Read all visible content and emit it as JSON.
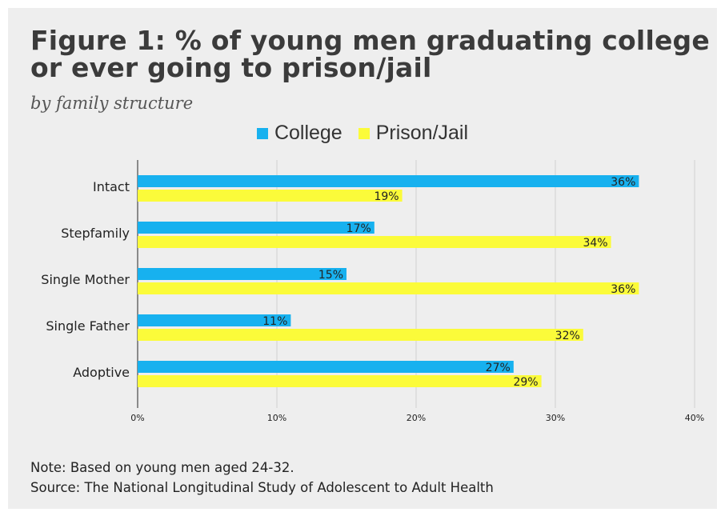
{
  "title_line1": "Figure 1: % of young men graduating college",
  "title_line2": "or ever going to prison/jail",
  "subtitle": "by family structure",
  "notes": {
    "note": "Note: Based on young men aged 24-32.",
    "source": "Source: The National Longitudinal Study of Adolescent to Adult Health"
  },
  "colors": {
    "college": "#17b1ef",
    "prison": "#fbfb3a",
    "background": "#eeeeee",
    "grid": "#d0d0d0"
  },
  "chart_data": {
    "type": "bar",
    "orientation": "horizontal",
    "title": "Figure 1: % of young men graduating college or ever going to prison/jail",
    "subtitle": "by family structure",
    "categories": [
      "Intact",
      "Stepfamily",
      "Single Mother",
      "Single Father",
      "Adoptive"
    ],
    "series": [
      {
        "name": "College",
        "values": [
          36,
          17,
          15,
          11,
          27
        ],
        "labels": [
          "36%",
          "17%",
          "15%",
          "11%",
          "27%"
        ]
      },
      {
        "name": "Prison/Jail",
        "values": [
          19,
          34,
          36,
          32,
          29
        ],
        "labels": [
          "19%",
          "34%",
          "36%",
          "32%",
          "29%"
        ]
      }
    ],
    "xlim": [
      0,
      40
    ],
    "xticks": [
      0,
      10,
      20,
      30,
      40
    ],
    "xtick_labels": [
      "0%",
      "10%",
      "20%",
      "30%",
      "40%"
    ],
    "grid": true,
    "legend_position": "top-center"
  }
}
